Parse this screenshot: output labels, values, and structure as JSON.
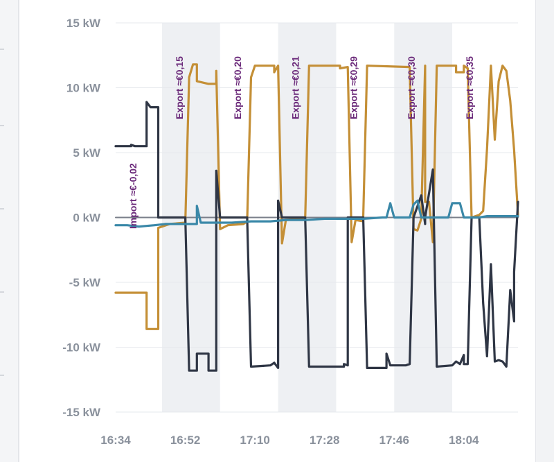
{
  "chart_data": {
    "type": "line",
    "unit": "kW",
    "ylim": [
      -15,
      15
    ],
    "y_ticks": [
      "15 kW",
      "10 kW",
      "5 kW",
      "0 kW",
      "-5 kW",
      "-10 kW",
      "-15 kW"
    ],
    "x_ticks": [
      "16:34",
      "16:52",
      "17:10",
      "17:28",
      "17:46",
      "18:04"
    ],
    "grid": "horizontal",
    "price_periods": [
      {
        "start": "16:34",
        "end": "16:46",
        "label": "Import ≈€-0,02"
      },
      {
        "start": "16:46",
        "end": "17:01",
        "label": "Export ≈€0,15"
      },
      {
        "start": "17:01",
        "end": "17:16",
        "label": "Export ≈€0,20"
      },
      {
        "start": "17:16",
        "end": "17:31",
        "label": "Export ≈€0,21"
      },
      {
        "start": "17:31",
        "end": "17:46",
        "label": "Export ≈€0,29"
      },
      {
        "start": "17:46",
        "end": "18:01",
        "label": "Export ≈€0,30"
      },
      {
        "start": "18:01",
        "end": "18:16",
        "label": "Export ≈€0,35"
      }
    ],
    "series": [
      {
        "color": "#c48f36",
        "points": [
          [
            "16:34",
            -5.8
          ],
          [
            "16:42",
            -5.8
          ],
          [
            "16:42",
            -8.6
          ],
          [
            "16:45",
            -8.6
          ],
          [
            "16:45",
            -0.8
          ],
          [
            "16:48",
            -0.5
          ],
          [
            "16:52",
            -0.4
          ],
          [
            "16:53",
            10.8
          ],
          [
            "16:54",
            11.8
          ],
          [
            "16:55",
            11.8
          ],
          [
            "16:55",
            10.5
          ],
          [
            "16:58",
            10.3
          ],
          [
            "17:00",
            10.3
          ],
          [
            "17:00",
            11.3
          ],
          [
            "17:01",
            -0.9
          ],
          [
            "17:03",
            -0.6
          ],
          [
            "17:07",
            -0.5
          ],
          [
            "17:08",
            -0.3
          ],
          [
            "17:09",
            10.8
          ],
          [
            "17:10",
            11.7
          ],
          [
            "17:15",
            11.7
          ],
          [
            "17:15",
            11.2
          ],
          [
            "17:16",
            11.7
          ],
          [
            "17:17",
            -2.0
          ],
          [
            "17:18",
            -0.2
          ],
          [
            "17:22",
            -0.1
          ],
          [
            "17:23",
            -0.1
          ],
          [
            "17:24",
            11.7
          ],
          [
            "17:32",
            11.7
          ],
          [
            "17:32",
            11.5
          ],
          [
            "17:34",
            11.6
          ],
          [
            "17:35",
            -1.9
          ],
          [
            "17:36",
            -0.2
          ],
          [
            "17:38",
            -0.3
          ],
          [
            "17:38",
            0.0
          ],
          [
            "17:39",
            11.7
          ],
          [
            "17:50",
            11.6
          ],
          [
            "17:51",
            -0.9
          ],
          [
            "17:52",
            -1.0
          ],
          [
            "17:53",
            -0.1
          ],
          [
            "17:54",
            11.7
          ],
          [
            "17:54",
            1.2
          ],
          [
            "17:55",
            1.2
          ],
          [
            "17:56",
            -1.9
          ],
          [
            "17:57",
            11.7
          ],
          [
            "18:02",
            11.7
          ],
          [
            "18:02",
            11.2
          ],
          [
            "18:04",
            11.2
          ],
          [
            "18:04",
            11.7
          ],
          [
            "18:05",
            11.5
          ],
          [
            "18:06",
            0.0
          ],
          [
            "18:08",
            0.2
          ],
          [
            "18:09",
            0.5
          ],
          [
            "18:10",
            5.3
          ],
          [
            "18:11",
            11.7
          ],
          [
            "18:12",
            6.0
          ],
          [
            "18:13",
            10.5
          ],
          [
            "18:14",
            11.7
          ],
          [
            "18:15",
            11.3
          ],
          [
            "18:16",
            9.0
          ],
          [
            "18:17",
            5.2
          ],
          [
            "18:18",
            0.2
          ]
        ]
      },
      {
        "color": "#2f3645",
        "points": [
          [
            "16:34",
            5.5
          ],
          [
            "16:38",
            5.5
          ],
          [
            "16:38",
            5.6
          ],
          [
            "16:39",
            5.5
          ],
          [
            "16:42",
            5.5
          ],
          [
            "16:42",
            8.9
          ],
          [
            "16:43",
            8.5
          ],
          [
            "16:45",
            8.5
          ],
          [
            "16:45",
            0.0
          ],
          [
            "16:51",
            0.0
          ],
          [
            "16:52",
            0.0
          ],
          [
            "16:53",
            -11.8
          ],
          [
            "16:54",
            -11.8
          ],
          [
            "16:55",
            -11.8
          ],
          [
            "16:55",
            -10.5
          ],
          [
            "16:58",
            -10.5
          ],
          [
            "16:58",
            -11.8
          ],
          [
            "17:00",
            -11.8
          ],
          [
            "17:00",
            3.6
          ],
          [
            "17:01",
            0.0
          ],
          [
            "17:08",
            0.0
          ],
          [
            "17:09",
            -11.5
          ],
          [
            "17:14",
            -11.4
          ],
          [
            "17:15",
            -11.2
          ],
          [
            "17:16",
            -11.6
          ],
          [
            "17:16",
            1.3
          ],
          [
            "17:17",
            0.0
          ],
          [
            "17:23",
            0.0
          ],
          [
            "17:24",
            -11.5
          ],
          [
            "17:33",
            -11.5
          ],
          [
            "17:33",
            -11.3
          ],
          [
            "17:34",
            -11.4
          ],
          [
            "17:34",
            0.0
          ],
          [
            "17:38",
            0.0
          ],
          [
            "17:39",
            -11.6
          ],
          [
            "17:44",
            -11.6
          ],
          [
            "17:44",
            -10.5
          ],
          [
            "17:45",
            -11.4
          ],
          [
            "17:49",
            -11.4
          ],
          [
            "17:50",
            -11.3
          ],
          [
            "17:51",
            0.0
          ],
          [
            "17:53",
            1.7
          ],
          [
            "17:54",
            -0.5
          ],
          [
            "17:54",
            0.0
          ],
          [
            "17:56",
            3.7
          ],
          [
            "17:57",
            -11.5
          ],
          [
            "18:01",
            -11.4
          ],
          [
            "18:02",
            -11.1
          ],
          [
            "18:03",
            -11.3
          ],
          [
            "18:04",
            -10.6
          ],
          [
            "18:04",
            -11.3
          ],
          [
            "18:05",
            -11.3
          ],
          [
            "18:06",
            0.0
          ],
          [
            "18:08",
            0.0
          ],
          [
            "18:09",
            -6.6
          ],
          [
            "18:10",
            -10.7
          ],
          [
            "18:11",
            -3.6
          ],
          [
            "18:12",
            -11.1
          ],
          [
            "18:13",
            -11.0
          ],
          [
            "18:14",
            -11.1
          ],
          [
            "18:15",
            -11.5
          ],
          [
            "18:16",
            -5.6
          ],
          [
            "18:17",
            -8.0
          ],
          [
            "18:17",
            -4.2
          ],
          [
            "18:18",
            1.2
          ]
        ]
      },
      {
        "color": "#3a88a8",
        "points": [
          [
            "16:34",
            -0.6
          ],
          [
            "16:37",
            -0.6
          ],
          [
            "16:40",
            -0.7
          ],
          [
            "16:44",
            -0.6
          ],
          [
            "16:47",
            -0.5
          ],
          [
            "16:52",
            -0.5
          ],
          [
            "16:55",
            -0.5
          ],
          [
            "16:55",
            0.9
          ],
          [
            "16:56",
            -0.4
          ],
          [
            "16:59",
            -0.4
          ],
          [
            "17:04",
            -0.4
          ],
          [
            "17:09",
            -0.3
          ],
          [
            "17:14",
            -0.3
          ],
          [
            "17:18",
            -0.2
          ],
          [
            "17:23",
            -0.2
          ],
          [
            "17:28",
            -0.1
          ],
          [
            "17:33",
            -0.1
          ],
          [
            "17:38",
            -0.1
          ],
          [
            "17:43",
            0.0
          ],
          [
            "17:44",
            0.0
          ],
          [
            "17:45",
            1.1
          ],
          [
            "17:46",
            0.0
          ],
          [
            "17:50",
            0.0
          ],
          [
            "17:51",
            1.0
          ],
          [
            "17:52",
            1.3
          ],
          [
            "17:53",
            0.0
          ],
          [
            "17:56",
            0.0
          ],
          [
            "17:57",
            0.0
          ],
          [
            "18:00",
            0.0
          ],
          [
            "18:01",
            1.1
          ],
          [
            "18:03",
            1.1
          ],
          [
            "18:04",
            0.0
          ],
          [
            "18:08",
            0.0
          ],
          [
            "18:10",
            0.1
          ],
          [
            "18:14",
            0.1
          ],
          [
            "18:17",
            0.1
          ],
          [
            "18:18",
            0.1
          ]
        ]
      },
      {
        "color": "#7a7f8a",
        "points": [
          [
            "16:34",
            0.0
          ],
          [
            "18:18",
            0.0
          ]
        ]
      }
    ]
  }
}
